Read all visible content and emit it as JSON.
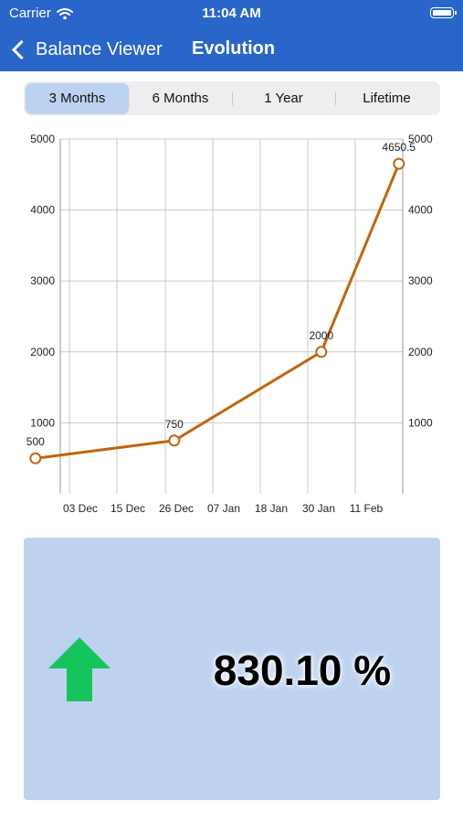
{
  "status_bar": {
    "carrier": "Carrier",
    "time": "11:04 AM"
  },
  "nav": {
    "back_label": "Balance Viewer",
    "title": "Evolution"
  },
  "segments": {
    "items": [
      "3 Months",
      "6 Months",
      "1 Year",
      "Lifetime"
    ],
    "selected": 0
  },
  "chart_data": {
    "type": "line",
    "x_ticks": [
      "03 Dec",
      "15 Dec",
      "26 Dec",
      "07 Jan",
      "18 Jan",
      "30 Jan",
      "11 Feb"
    ],
    "y_ticks": [
      1000,
      2000,
      3000,
      4000,
      5000
    ],
    "ylim": [
      0,
      5000
    ],
    "points": [
      {
        "x": "2023-11-22",
        "y": 500,
        "label": "500"
      },
      {
        "x": "2023-12-26",
        "y": 750,
        "label": "750"
      },
      {
        "x": "2024-01-31",
        "y": 2000,
        "label": "2000"
      },
      {
        "x": "2024-02-19",
        "y": 4650.5,
        "label": "4650.5"
      }
    ],
    "line_color": "#c0660e",
    "grid": true
  },
  "summary": {
    "percent": "830.10 %",
    "direction": "up",
    "arrow_color": "#16c45c"
  },
  "icons": {
    "back": "chevron-left-icon",
    "wifi": "wifi-icon",
    "battery": "battery-icon",
    "trend": "arrow-up-icon"
  }
}
